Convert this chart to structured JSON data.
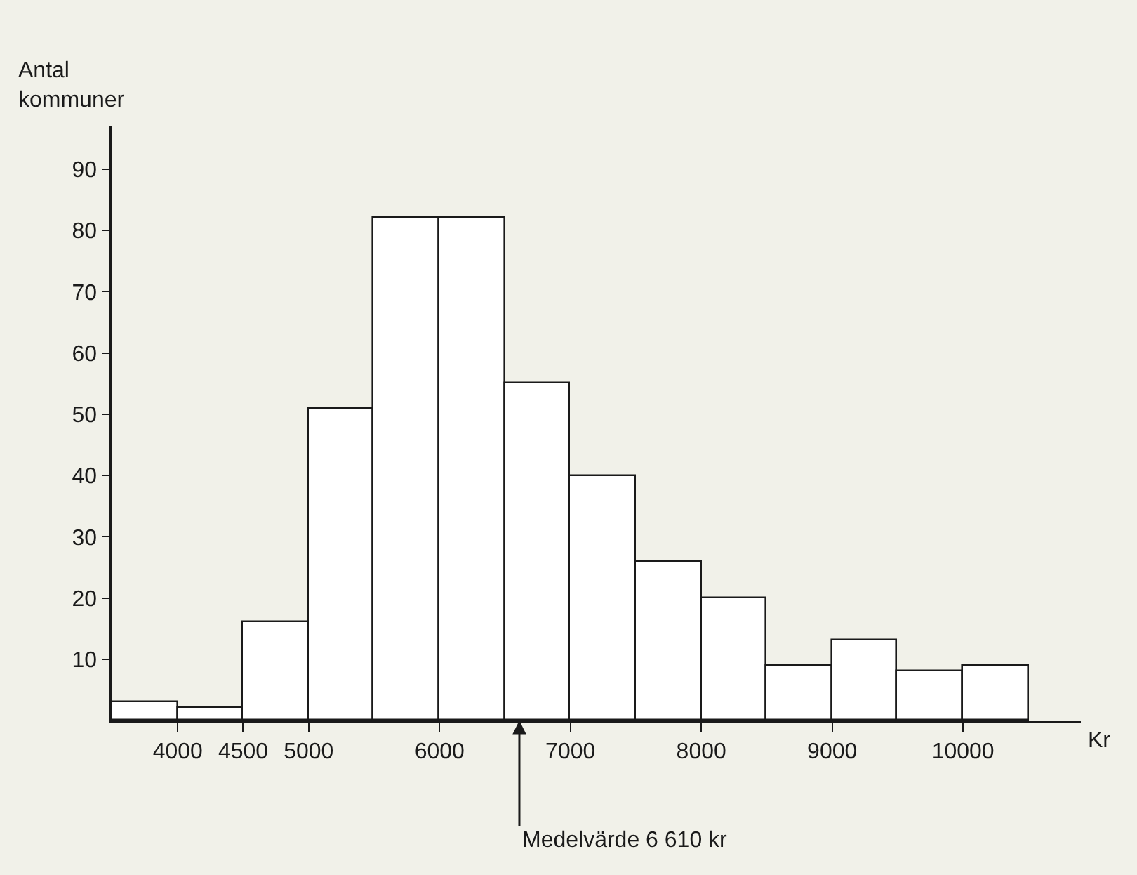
{
  "chart_data": {
    "type": "histogram",
    "ylabel": "Antal kommuner",
    "xlabel": "Kr",
    "bins": [
      3500,
      4000,
      4500,
      5000,
      5500,
      6000,
      6500,
      7000,
      7500,
      8000,
      8500,
      9000,
      9500,
      10000,
      10500
    ],
    "values": [
      3,
      2,
      16,
      51,
      82,
      82,
      55,
      40,
      26,
      20,
      9,
      13,
      8,
      9
    ],
    "color": "#ffffff",
    "xlim": [
      3500,
      10900
    ],
    "xticks": [
      4000,
      4500,
      5000,
      6000,
      7000,
      8000,
      9000,
      10000
    ],
    "ylim": [
      0,
      97
    ],
    "yticks": [
      10,
      20,
      30,
      40,
      50,
      60,
      70,
      80,
      90
    ],
    "grid": false,
    "annotations": [
      {
        "text": "Medelvärde 6 610 kr",
        "x": 6610,
        "y": 0
      }
    ]
  }
}
